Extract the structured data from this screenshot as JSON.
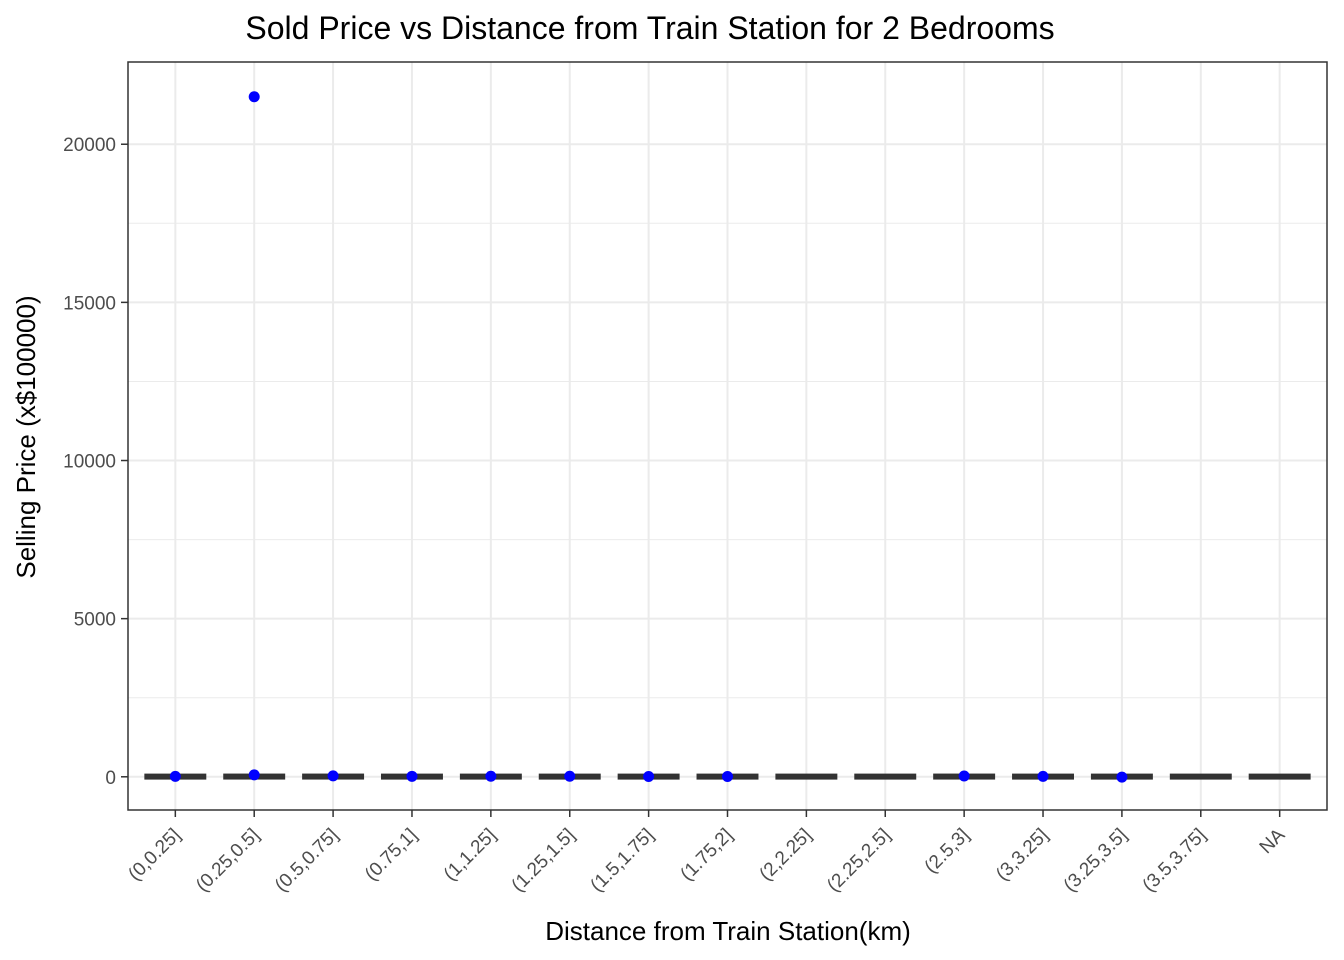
{
  "chart_data": {
    "type": "boxplot",
    "title": "Sold Price vs Distance from Train Station for 2 Bedrooms",
    "xlabel": "Distance from Train Station(km)",
    "ylabel": "Selling Price (x$100000)",
    "categories": [
      "(0,0.25]",
      "(0.25,0.5]",
      "(0.5,0.75]",
      "(0.75,1]",
      "(1,1.25]",
      "(1.25,1.5]",
      "(1.5,1.75]",
      "(1.75,2]",
      "(2,2.25]",
      "(2.25,2.5]",
      "(2.5,3]",
      "(3,3.25]",
      "(3.25,3.5]",
      "(3.5,3.75]",
      "NA"
    ],
    "ylim": [
      -1050,
      22600
    ],
    "yticks": [
      0,
      5000,
      10000,
      15000,
      20000
    ],
    "ytick_labels": [
      "0",
      "5000",
      "10000",
      "15000",
      "20000"
    ],
    "grid": true,
    "median_values": [
      6,
      7,
      7,
      6,
      6,
      6,
      6,
      6,
      6,
      6,
      7,
      6,
      6,
      6,
      6
    ],
    "outliers": [
      {
        "category": "(0,0.25]",
        "values": [
          12
        ]
      },
      {
        "category": "(0.25,0.5]",
        "values": [
          21500,
          60
        ]
      },
      {
        "category": "(0.5,0.75]",
        "values": [
          30
        ]
      },
      {
        "category": "(0.75,1]",
        "values": [
          15
        ]
      },
      {
        "category": "(1,1.25]",
        "values": [
          18
        ]
      },
      {
        "category": "(1.25,1.5]",
        "values": [
          16
        ]
      },
      {
        "category": "(1.5,1.75]",
        "values": [
          10
        ]
      },
      {
        "category": "(1.75,2]",
        "values": [
          8
        ]
      },
      {
        "category": "(2.5,3]",
        "values": [
          25
        ]
      },
      {
        "category": "(3,3.25]",
        "values": [
          12
        ]
      },
      {
        "category": "(3.25,3.5]",
        "values": [
          -10
        ]
      }
    ],
    "point_color": "#0000FF",
    "box_color": "#333333"
  }
}
